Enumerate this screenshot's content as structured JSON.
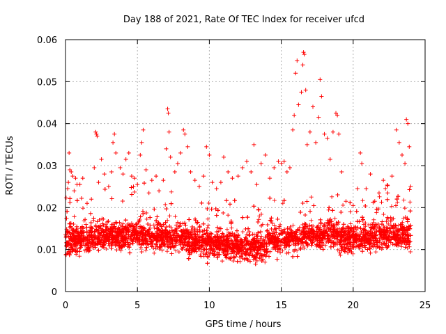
{
  "chart_data": {
    "type": "scatter",
    "title": "Day 188 of 2021, Rate Of TEC Index for receiver ufcd",
    "xlabel": "GPS time / hours",
    "ylabel": "ROTI / TECUs",
    "xlim": [
      0,
      25
    ],
    "ylim": [
      0,
      0.06
    ],
    "x_ticks": [
      "0",
      "5",
      "10",
      "15",
      "20",
      "25"
    ],
    "y_ticks": [
      "0",
      "0.01",
      "0.02",
      "0.03",
      "0.04",
      "0.05",
      "0.06"
    ],
    "grid": true,
    "marker": "plus",
    "color": "#ff0000",
    "series_points": [
      [
        0.1,
        0.011
      ],
      [
        0.15,
        0.0245
      ],
      [
        0.2,
        0.026
      ],
      [
        0.25,
        0.033
      ],
      [
        0.3,
        0.029
      ],
      [
        0.4,
        0.0285
      ],
      [
        0.5,
        0.0275
      ],
      [
        0.6,
        0.024
      ],
      [
        0.7,
        0.027
      ],
      [
        0.8,
        0.0255
      ],
      [
        1.0,
        0.0255
      ],
      [
        1.2,
        0.027
      ],
      [
        1.5,
        0.021
      ],
      [
        1.8,
        0.022
      ],
      [
        2.0,
        0.0295
      ],
      [
        2.1,
        0.038
      ],
      [
        2.15,
        0.0375
      ],
      [
        2.2,
        0.037
      ],
      [
        2.3,
        0.026
      ],
      [
        2.5,
        0.0315
      ],
      [
        2.7,
        0.028
      ],
      [
        3.0,
        0.025
      ],
      [
        3.2,
        0.0285
      ],
      [
        3.3,
        0.0355
      ],
      [
        3.4,
        0.0375
      ],
      [
        3.5,
        0.033
      ],
      [
        3.8,
        0.0295
      ],
      [
        4.0,
        0.028
      ],
      [
        4.2,
        0.0315
      ],
      [
        4.4,
        0.033
      ],
      [
        4.6,
        0.0275
      ],
      [
        4.8,
        0.027
      ],
      [
        5.0,
        0.0255
      ],
      [
        5.2,
        0.0325
      ],
      [
        5.3,
        0.0355
      ],
      [
        5.4,
        0.0385
      ],
      [
        5.6,
        0.029
      ],
      [
        5.8,
        0.0235
      ],
      [
        6.0,
        0.0265
      ],
      [
        6.3,
        0.0275
      ],
      [
        6.5,
        0.024
      ],
      [
        6.8,
        0.0265
      ],
      [
        7.0,
        0.034
      ],
      [
        7.1,
        0.0435
      ],
      [
        7.15,
        0.0425
      ],
      [
        7.2,
        0.038
      ],
      [
        7.3,
        0.032
      ],
      [
        7.6,
        0.0285
      ],
      [
        7.8,
        0.0305
      ],
      [
        8.0,
        0.033
      ],
      [
        8.2,
        0.0385
      ],
      [
        8.3,
        0.0375
      ],
      [
        8.5,
        0.0345
      ],
      [
        8.7,
        0.0285
      ],
      [
        9.0,
        0.0265
      ],
      [
        9.3,
        0.025
      ],
      [
        9.6,
        0.0275
      ],
      [
        9.8,
        0.0345
      ],
      [
        10.0,
        0.0325
      ],
      [
        10.2,
        0.026
      ],
      [
        10.5,
        0.0245
      ],
      [
        10.8,
        0.026
      ],
      [
        11.0,
        0.032
      ],
      [
        11.3,
        0.0285
      ],
      [
        11.6,
        0.027
      ],
      [
        12.0,
        0.0275
      ],
      [
        12.3,
        0.0295
      ],
      [
        12.6,
        0.031
      ],
      [
        12.9,
        0.0285
      ],
      [
        13.1,
        0.035
      ],
      [
        13.3,
        0.0255
      ],
      [
        13.6,
        0.0305
      ],
      [
        13.9,
        0.0325
      ],
      [
        14.2,
        0.027
      ],
      [
        14.5,
        0.0295
      ],
      [
        14.8,
        0.031
      ],
      [
        15.0,
        0.0305
      ],
      [
        15.2,
        0.031
      ],
      [
        15.4,
        0.0285
      ],
      [
        15.6,
        0.0295
      ],
      [
        15.8,
        0.0385
      ],
      [
        15.9,
        0.042
      ],
      [
        16.0,
        0.052
      ],
      [
        16.1,
        0.055
      ],
      [
        16.2,
        0.0445
      ],
      [
        16.4,
        0.0475
      ],
      [
        16.5,
        0.054
      ],
      [
        16.55,
        0.057
      ],
      [
        16.6,
        0.0565
      ],
      [
        16.7,
        0.048
      ],
      [
        16.8,
        0.035
      ],
      [
        17.0,
        0.038
      ],
      [
        17.2,
        0.044
      ],
      [
        17.4,
        0.0355
      ],
      [
        17.6,
        0.0415
      ],
      [
        17.7,
        0.0505
      ],
      [
        17.8,
        0.0465
      ],
      [
        18.0,
        0.0375
      ],
      [
        18.2,
        0.0365
      ],
      [
        18.4,
        0.0315
      ],
      [
        18.6,
        0.038
      ],
      [
        18.8,
        0.0425
      ],
      [
        18.9,
        0.042
      ],
      [
        19.0,
        0.0375
      ],
      [
        19.2,
        0.0285
      ],
      [
        19.5,
        0.0215
      ],
      [
        19.8,
        0.019
      ],
      [
        20.0,
        0.0205
      ],
      [
        20.3,
        0.0245
      ],
      [
        20.5,
        0.033
      ],
      [
        20.6,
        0.0305
      ],
      [
        20.9,
        0.0245
      ],
      [
        21.2,
        0.028
      ],
      [
        21.5,
        0.0215
      ],
      [
        21.8,
        0.0235
      ],
      [
        22.1,
        0.0265
      ],
      [
        22.4,
        0.0235
      ],
      [
        22.7,
        0.0275
      ],
      [
        23.0,
        0.0385
      ],
      [
        23.2,
        0.0355
      ],
      [
        23.4,
        0.0325
      ],
      [
        23.6,
        0.0305
      ],
      [
        23.7,
        0.041
      ],
      [
        23.8,
        0.04
      ],
      [
        23.9,
        0.0345
      ],
      [
        24.0,
        0.025
      ]
    ]
  }
}
